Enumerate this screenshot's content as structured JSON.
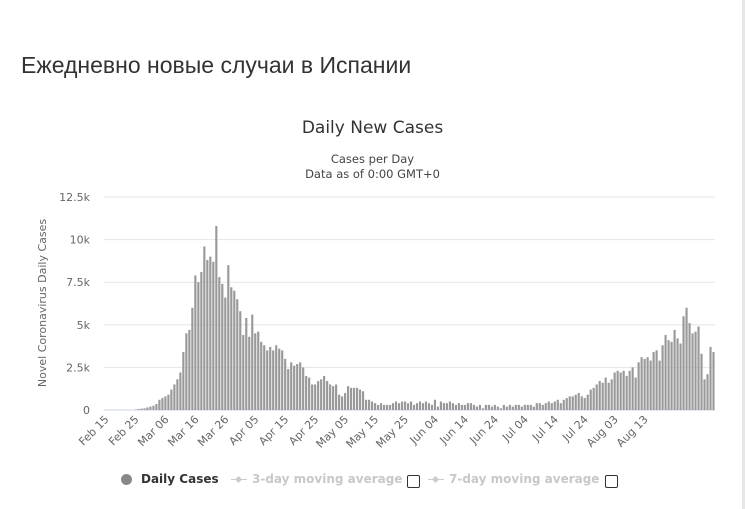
{
  "page": {
    "heading": "Ежедневно новые случаи в Испании"
  },
  "colors": {
    "bar": "#999999",
    "grid": "#e6e6e6",
    "axis_text": "#666666",
    "legend_inactive": "#cccccc"
  },
  "legend": {
    "items": [
      {
        "label": "Daily Cases",
        "active": true,
        "icon": "circle-marker-icon"
      },
      {
        "label": "3-day moving average",
        "active": false,
        "icon": "line-diamond-marker-icon"
      },
      {
        "label": "7-day moving average",
        "active": false,
        "icon": "line-diamond-marker-icon"
      }
    ]
  },
  "chart_data": {
    "type": "bar",
    "title": "Daily New Cases",
    "subtitle": [
      "Cases per Day",
      "Data as of 0:00 GMT+0"
    ],
    "ylabel": "Novel Coronavirus Daily Cases",
    "xlabel": "",
    "ylim": [
      0,
      12500
    ],
    "yticks": [
      0,
      2500,
      5000,
      7500,
      10000,
      12500
    ],
    "ytick_labels": [
      "0",
      "2.5k",
      "5k",
      "7.5k",
      "10k",
      "12.5k"
    ],
    "xtick_labels": [
      "Feb 15",
      "Feb 25",
      "Mar 06",
      "Mar 16",
      "Mar 26",
      "Apr 05",
      "Apr 15",
      "Apr 25",
      "May 05",
      "May 15",
      "May 25",
      "Jun 04",
      "Jun 14",
      "Jun 24",
      "Jul 04",
      "Jul 14",
      "Jul 24",
      "Aug 03",
      "Aug 13"
    ],
    "grid": true,
    "legend_position": "bottom",
    "series": [
      {
        "name": "Daily Cases",
        "start_date": "Feb 15",
        "values": [
          0,
          0,
          0,
          0,
          0,
          0,
          0,
          0,
          0,
          0,
          20,
          60,
          80,
          100,
          150,
          200,
          250,
          350,
          600,
          700,
          800,
          900,
          1200,
          1500,
          1800,
          2200,
          3400,
          4500,
          4700,
          6000,
          7900,
          7500,
          8100,
          9600,
          8800,
          9000,
          8700,
          10800,
          7800,
          7400,
          6600,
          8500,
          7200,
          7000,
          6500,
          5800,
          4400,
          5400,
          4300,
          5600,
          4500,
          4600,
          4000,
          3800,
          3500,
          3700,
          3500,
          3800,
          3600,
          3500,
          3000,
          2400,
          2800,
          2600,
          2700,
          2800,
          2500,
          2000,
          1900,
          1500,
          1500,
          1700,
          1800,
          2000,
          1700,
          1500,
          1400,
          1500,
          900,
          800,
          1000,
          1400,
          1300,
          1300,
          1300,
          1200,
          1100,
          600,
          600,
          500,
          400,
          300,
          400,
          300,
          300,
          300,
          400,
          500,
          400,
          500,
          500,
          400,
          500,
          300,
          400,
          500,
          400,
          500,
          400,
          300,
          600,
          200,
          500,
          400,
          400,
          500,
          400,
          300,
          400,
          300,
          300,
          400,
          400,
          300,
          200,
          300,
          100,
          300,
          300,
          200,
          300,
          200,
          100,
          300,
          200,
          300,
          200,
          300,
          300,
          200,
          300,
          300,
          300,
          200,
          400,
          400,
          300,
          400,
          500,
          400,
          500,
          600,
          400,
          600,
          700,
          800,
          800,
          900,
          1000,
          800,
          700,
          900,
          1200,
          1300,
          1500,
          1700,
          1600,
          1900,
          1600,
          1800,
          2200,
          2300,
          2200,
          2300,
          2000,
          2300,
          2500,
          1900,
          2800,
          3100,
          3000,
          3100,
          2900,
          3400,
          3500,
          2900,
          3800,
          4400,
          4100,
          4000,
          4700,
          4200,
          3900,
          5500,
          6000,
          5100,
          4500,
          4600,
          4900,
          3300,
          1800,
          2100,
          3700,
          3400
        ]
      }
    ]
  }
}
